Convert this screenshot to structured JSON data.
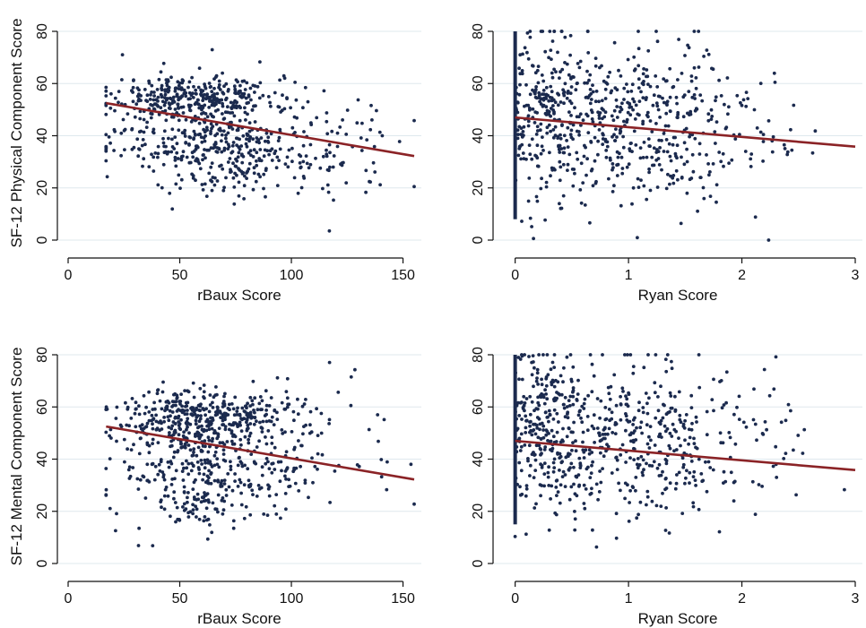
{
  "chart_data": [
    {
      "type": "scatter",
      "panel": "top-left",
      "xlabel": "rBaux Score",
      "ylabel": "SF-12 Physical Component Score",
      "xlim": [
        0,
        155
      ],
      "ylim": [
        0,
        80
      ],
      "xticks": [
        0,
        50,
        100,
        150
      ],
      "yticks": [
        0,
        20,
        40,
        60,
        80
      ],
      "grid": true,
      "fit_line": [
        [
          17,
          52.5
        ],
        [
          155,
          32.2
        ]
      ],
      "cloud": [
        {
          "cx": 55,
          "cy": 55,
          "sx": 18,
          "sy": 4,
          "n": 260
        },
        {
          "cx": 60,
          "cy": 42,
          "sx": 20,
          "sy": 10,
          "n": 330
        },
        {
          "cx": 75,
          "cy": 30,
          "sx": 18,
          "sy": 6,
          "n": 120
        },
        {
          "cx": 105,
          "cy": 40,
          "sx": 18,
          "sy": 12,
          "n": 70
        },
        {
          "cx": 135,
          "cy": 35,
          "sx": 10,
          "sy": 8,
          "n": 14
        }
      ],
      "seed": 11
    },
    {
      "type": "scatter",
      "panel": "top-right",
      "xlabel": "Ryan Score",
      "ylabel": "",
      "xlim": [
        -0.1,
        3
      ],
      "ylim": [
        0,
        80
      ],
      "xticks": [
        0,
        1,
        2,
        3
      ],
      "yticks": [
        0,
        20,
        40,
        60,
        80
      ],
      "grid": true,
      "fit_line": [
        [
          0,
          47
        ],
        [
          3,
          35.8
        ]
      ],
      "column_x": 0,
      "column_range": [
        8,
        80
      ],
      "cloud": [
        {
          "cx": 0.25,
          "cy": 48,
          "sx": 0.18,
          "sy": 16,
          "n": 230
        },
        {
          "cx": 0.75,
          "cy": 45,
          "sx": 0.28,
          "sy": 16,
          "n": 230
        },
        {
          "cx": 1.35,
          "cy": 42,
          "sx": 0.25,
          "sy": 15,
          "n": 180
        },
        {
          "cx": 2.1,
          "cy": 42,
          "sx": 0.3,
          "sy": 15,
          "n": 60
        }
      ],
      "seed": 23
    },
    {
      "type": "scatter",
      "panel": "bottom-left",
      "xlabel": "rBaux Score",
      "ylabel": "SF-12 Mental Component Score",
      "xlim": [
        0,
        155
      ],
      "ylim": [
        0,
        80
      ],
      "xticks": [
        0,
        50,
        100,
        150
      ],
      "yticks": [
        0,
        20,
        40,
        60,
        80
      ],
      "grid": true,
      "fit_line": [
        [
          17,
          52.5
        ],
        [
          155,
          32.2
        ]
      ],
      "cloud": [
        {
          "cx": 60,
          "cy": 57,
          "sx": 18,
          "sy": 5,
          "n": 300
        },
        {
          "cx": 60,
          "cy": 42,
          "sx": 20,
          "sy": 12,
          "n": 330
        },
        {
          "cx": 65,
          "cy": 25,
          "sx": 15,
          "sy": 7,
          "n": 90
        },
        {
          "cx": 100,
          "cy": 45,
          "sx": 15,
          "sy": 12,
          "n": 70
        },
        {
          "cx": 135,
          "cy": 50,
          "sx": 10,
          "sy": 12,
          "n": 12
        }
      ],
      "seed": 37
    },
    {
      "type": "scatter",
      "panel": "bottom-right",
      "xlabel": "Ryan Score",
      "ylabel": "",
      "xlim": [
        -0.1,
        3
      ],
      "ylim": [
        0,
        80
      ],
      "xticks": [
        0,
        1,
        2,
        3
      ],
      "yticks": [
        0,
        20,
        40,
        60,
        80
      ],
      "grid": true,
      "fit_line": [
        [
          0,
          47
        ],
        [
          3,
          35.8
        ]
      ],
      "column_x": 0,
      "column_range": [
        15,
        80
      ],
      "cloud": [
        {
          "cx": 0.25,
          "cy": 50,
          "sx": 0.18,
          "sy": 16,
          "n": 230
        },
        {
          "cx": 0.75,
          "cy": 47,
          "sx": 0.28,
          "sy": 16,
          "n": 230
        },
        {
          "cx": 1.35,
          "cy": 47,
          "sx": 0.25,
          "sy": 15,
          "n": 180
        },
        {
          "cx": 2.1,
          "cy": 50,
          "sx": 0.3,
          "sy": 15,
          "n": 55
        }
      ],
      "seed": 51
    }
  ]
}
